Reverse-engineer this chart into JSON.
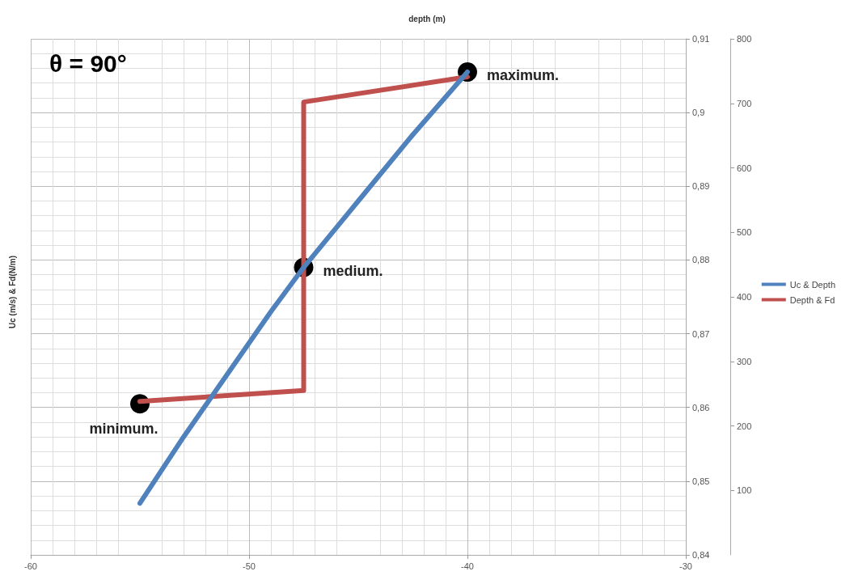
{
  "chart_data": {
    "type": "line",
    "title": "θ = 90°",
    "xlabel": "depth (m)",
    "ylabel": "Uc (m/s) & Fd(N/m)",
    "xlim": [
      -60,
      -30
    ],
    "xticks": [
      -60,
      -50,
      -40,
      -30
    ],
    "ylim": [
      0.84,
      0.91
    ],
    "yticks": [
      {
        "value": 0.84,
        "label": "0,84"
      },
      {
        "value": 0.85,
        "label": "0,85"
      },
      {
        "value": 0.86,
        "label": "0,86"
      },
      {
        "value": 0.87,
        "label": "0,87"
      },
      {
        "value": 0.88,
        "label": "0,88"
      },
      {
        "value": 0.89,
        "label": "0,89"
      },
      {
        "value": 0.9,
        "label": "0,9"
      },
      {
        "value": 0.91,
        "label": "0,91"
      }
    ],
    "y2lim": [
      0,
      800
    ],
    "y2ticks": [
      100,
      200,
      300,
      400,
      500,
      600,
      700,
      800
    ],
    "grid": true,
    "legend": "right",
    "series": [
      {
        "name": "Uc & Depth",
        "color": "#4f81bd",
        "x": [
          -55,
          -53,
          -51,
          -49,
          -47.5,
          -45,
          -42.5,
          -40
        ],
        "values": [
          0.847,
          0.856,
          0.8645,
          0.873,
          0.879,
          0.888,
          0.897,
          0.9055
        ]
      },
      {
        "name": "Depth & Fd",
        "color": "#c0504d",
        "axis": "y2",
        "x": [
          -55,
          -47.5,
          -47.5,
          -40
        ],
        "values": [
          238,
          255,
          702,
          741
        ]
      }
    ],
    "annotations": [
      {
        "text": "minimum.",
        "x": -55,
        "y": 0.8605
      },
      {
        "text": "medium.",
        "x": -47.5,
        "y": 0.879
      },
      {
        "text": "maximum.",
        "x": -40,
        "y": 0.9055
      }
    ]
  }
}
